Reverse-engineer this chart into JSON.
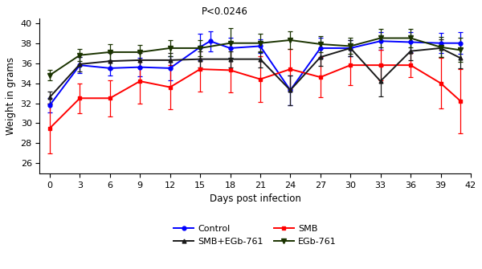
{
  "xticks": [
    0,
    3,
    6,
    9,
    12,
    15,
    18,
    21,
    24,
    27,
    30,
    33,
    36,
    39,
    42
  ],
  "ylim": [
    25.0,
    40.5
  ],
  "yticks": [
    26,
    28,
    30,
    32,
    34,
    36,
    38,
    40
  ],
  "xlabel": "Days post infection",
  "ylabel": "Weight in grams",
  "pvalue_text": "P<0.0246",
  "series": [
    {
      "label": "Control",
      "color": "#0000ff",
      "marker": "o",
      "markersize": 3.5,
      "linewidth": 1.4,
      "x": [
        0,
        3,
        6,
        9,
        12,
        15,
        16,
        18,
        21,
        24,
        27,
        30,
        33,
        36,
        39,
        41
      ],
      "y": [
        31.8,
        35.8,
        35.5,
        35.6,
        35.5,
        37.6,
        38.2,
        37.5,
        37.7,
        33.3,
        37.5,
        37.5,
        38.2,
        38.1,
        38.0,
        38.0
      ],
      "yerr": [
        0.7,
        0.8,
        0.7,
        0.9,
        1.2,
        1.3,
        1.0,
        1.0,
        0.7,
        1.5,
        1.0,
        0.8,
        0.9,
        1.0,
        1.0,
        1.1
      ]
    },
    {
      "label": "SMB",
      "color": "#ff0000",
      "marker": "s",
      "markersize": 3.5,
      "linewidth": 1.4,
      "x": [
        0,
        3,
        6,
        9,
        12,
        15,
        18,
        21,
        24,
        27,
        30,
        33,
        36,
        39,
        41
      ],
      "y": [
        29.5,
        32.5,
        32.5,
        34.2,
        33.6,
        35.4,
        35.3,
        34.4,
        35.4,
        34.6,
        35.8,
        35.8,
        35.8,
        34.0,
        32.2
      ],
      "yerr": [
        2.5,
        1.5,
        1.8,
        2.2,
        2.2,
        2.2,
        2.2,
        2.3,
        2.0,
        2.0,
        2.0,
        1.5,
        1.2,
        2.5,
        3.2
      ]
    },
    {
      "label": "SMB+EGb-761",
      "color": "#1a1a1a",
      "marker": "^",
      "markersize": 3.5,
      "linewidth": 1.4,
      "x": [
        0,
        3,
        6,
        9,
        12,
        15,
        18,
        21,
        24,
        27,
        30,
        33,
        36,
        39,
        41
      ],
      "y": [
        32.6,
        35.9,
        36.2,
        36.3,
        36.3,
        36.4,
        36.4,
        36.4,
        33.3,
        36.6,
        37.5,
        34.2,
        37.2,
        37.5,
        36.5
      ],
      "yerr": [
        0.6,
        0.7,
        0.8,
        0.7,
        0.7,
        0.8,
        0.8,
        0.8,
        1.5,
        0.9,
        0.8,
        1.5,
        0.9,
        0.9,
        1.0
      ]
    },
    {
      "label": "EGb-761",
      "color": "#1a3300",
      "marker": "v",
      "markersize": 4.5,
      "linewidth": 1.4,
      "x": [
        0,
        3,
        6,
        9,
        12,
        15,
        18,
        21,
        24,
        27,
        30,
        33,
        36,
        39,
        41
      ],
      "y": [
        34.8,
        36.8,
        37.1,
        37.1,
        37.5,
        37.5,
        38.0,
        38.0,
        38.3,
        37.9,
        37.7,
        38.5,
        38.5,
        37.6,
        37.3
      ],
      "yerr": [
        0.5,
        0.6,
        0.8,
        0.7,
        0.8,
        0.8,
        1.5,
        0.9,
        0.9,
        0.8,
        0.8,
        0.9,
        0.9,
        1.0,
        1.2
      ]
    }
  ]
}
